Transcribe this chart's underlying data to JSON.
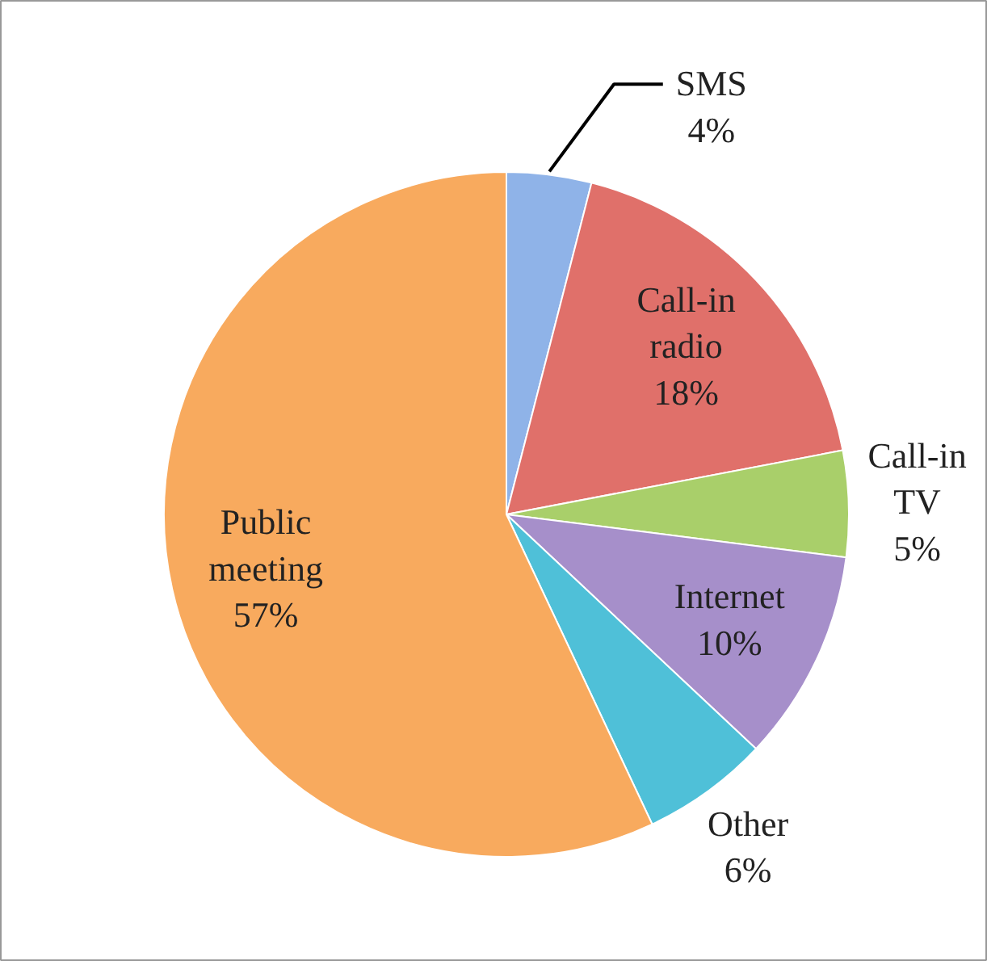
{
  "chart_data": {
    "type": "pie",
    "categories": [
      "SMS",
      "Call-in radio",
      "Call-in TV",
      "Internet",
      "Other",
      "Public meeting"
    ],
    "values": [
      4,
      18,
      5,
      10,
      6,
      57
    ],
    "value_labels": [
      "4%",
      "18%",
      "5%",
      "10%",
      "6%",
      "57%"
    ],
    "colors": [
      "#8fb3e8",
      "#e0706a",
      "#a9cf6a",
      "#a68fca",
      "#4fc0d8",
      "#f8aa5e"
    ]
  }
}
